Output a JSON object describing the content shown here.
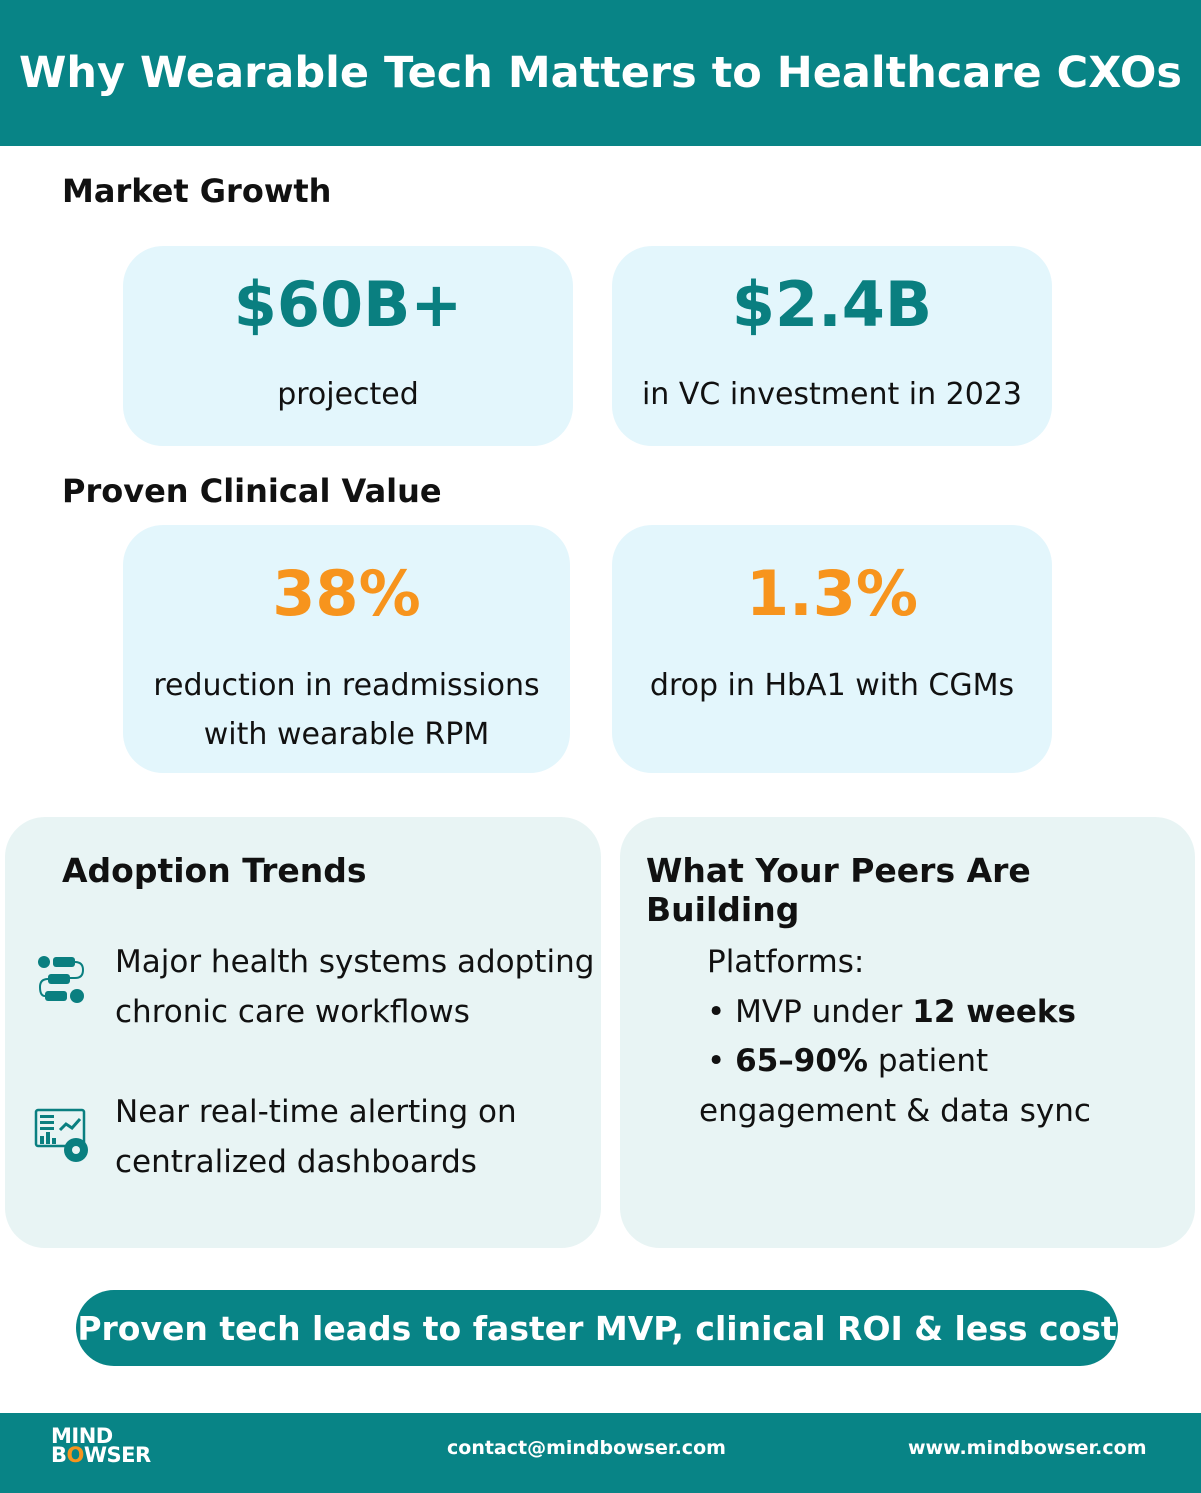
{
  "title": "Why Wearable Tech Matters to Healthcare CXOs",
  "market": {
    "heading": "Market Growth",
    "cards": [
      {
        "value": "$60B+",
        "label": "projected"
      },
      {
        "value": "$2.4B",
        "label": "in VC investment in 2023"
      }
    ]
  },
  "clinical": {
    "heading": "Proven Clinical Value",
    "cards": [
      {
        "value": "38%",
        "line1": "reduction in readmissions",
        "line2": "with wearable RPM"
      },
      {
        "value": "1.3%",
        "line1": "drop in HbA1 with CGMs"
      }
    ]
  },
  "adoption": {
    "heading": "Adoption Trends",
    "items": [
      {
        "icon": "workflow-icon",
        "line1": "Major health systems adopting",
        "line2": "chronic care workflows"
      },
      {
        "icon": "dashboard-icon",
        "line1": "Near real-time alerting on",
        "line2": "centralized dashboards"
      }
    ]
  },
  "peers": {
    "heading": "What Your Peers Are Building",
    "platforms": "Platforms:",
    "b1_pre": "• MVP under ",
    "b1_bold": "12 weeks",
    "b2_pre": "• ",
    "b2_bold": "65–90%",
    "b2_post": " patient",
    "b2_line2": "engagement & data sync"
  },
  "banner": "Proven tech leads to faster MVP, clinical ROI & less cost",
  "footer": {
    "logo": "MIND BOWSER",
    "email": "contact@mindbowser.com",
    "website": "www.mindbowser.com"
  },
  "colors": {
    "teal": "#088486",
    "orange": "#f7941d",
    "card": "#e3f6fc",
    "panel": "#e8f4f4"
  }
}
